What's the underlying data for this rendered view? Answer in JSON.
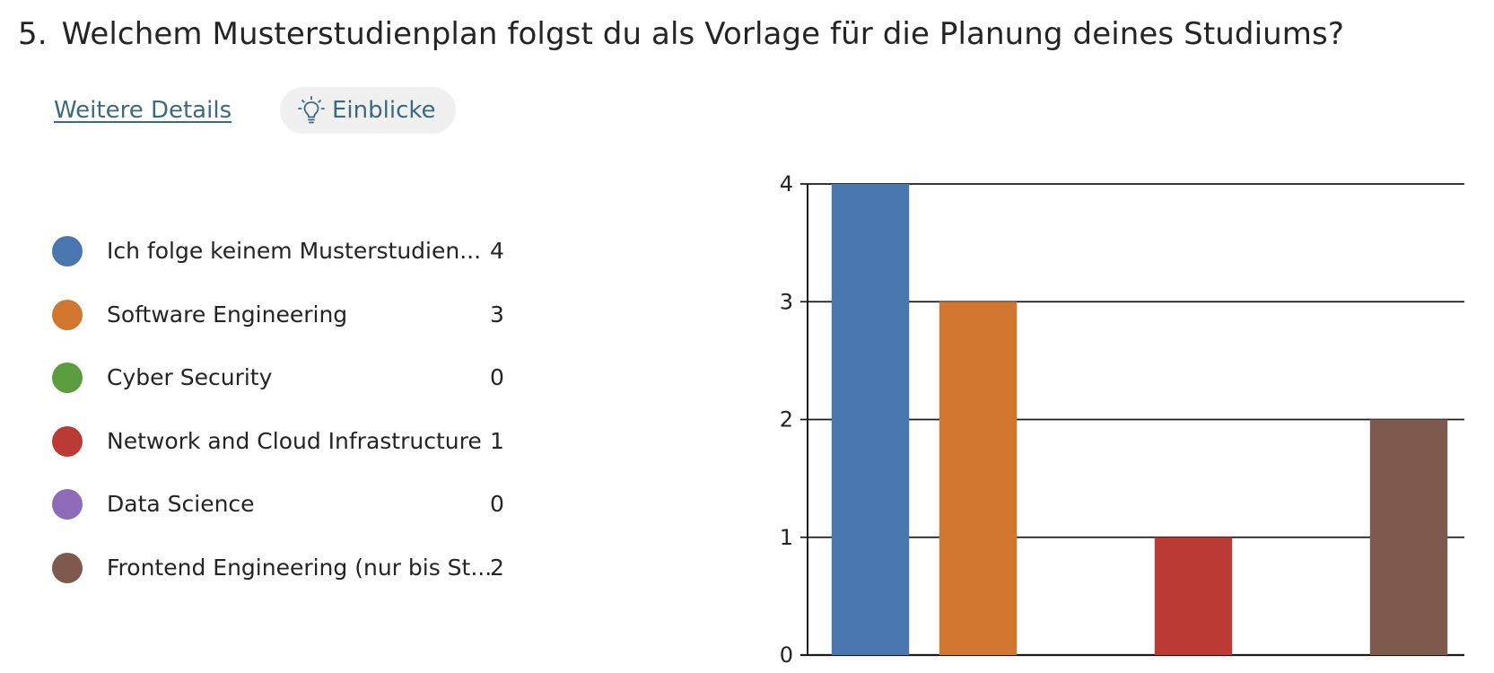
{
  "question": {
    "number": "5.",
    "title": "Welchem Musterstudienplan folgst du als Vorlage für die Planung deines Studiums?"
  },
  "actions": {
    "details_label": "Weitere Details",
    "insights_label": "Einblicke",
    "insights_icon": "lightbulb-icon"
  },
  "legend": [
    {
      "label": "Ich folge keinem Musterstudien...",
      "count": "4",
      "color": "#4a76b0"
    },
    {
      "label": "Software Engineering",
      "count": "3",
      "color": "#d0762e"
    },
    {
      "label": "Cyber Security",
      "count": "0",
      "color": "#5b9c3e"
    },
    {
      "label": "Network and Cloud Infrastructure",
      "count": "1",
      "color": "#bb3a33"
    },
    {
      "label": "Data Science",
      "count": "0",
      "color": "#8e6bb8"
    },
    {
      "label": "Frontend Engineering (nur bis St...",
      "count": "2",
      "color": "#7e5a4e"
    }
  ],
  "chart_data": {
    "type": "bar",
    "categories": [
      "Ich folge keinem Musterstudien...",
      "Software Engineering",
      "Cyber Security",
      "Network and Cloud Infrastructure",
      "Data Science",
      "Frontend Engineering (nur bis St..."
    ],
    "values": [
      4,
      3,
      0,
      1,
      0,
      2
    ],
    "colors": [
      "#4a76b0",
      "#d0762e",
      "#5b9c3e",
      "#bb3a33",
      "#8e6bb8",
      "#7e5a4e"
    ],
    "ylim": [
      0,
      4
    ],
    "yticks": [
      0,
      1,
      2,
      3,
      4
    ],
    "grid": true,
    "legend_placement": "left",
    "title": "",
    "xlabel": "",
    "ylabel": ""
  }
}
